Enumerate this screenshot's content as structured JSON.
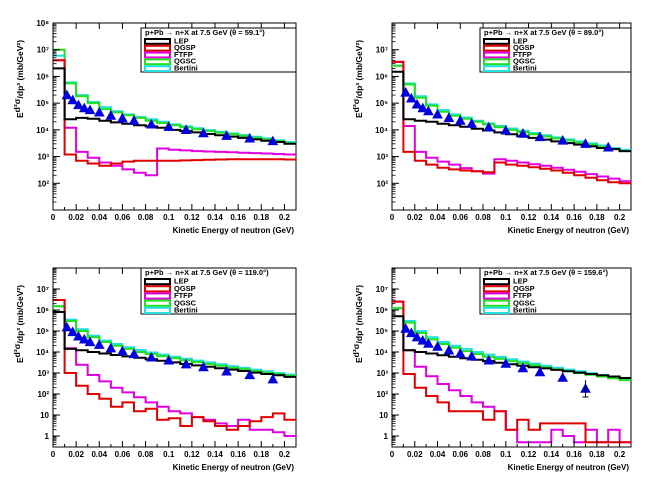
{
  "colors": {
    "LEP": "#000000",
    "QGSP": "#e00000",
    "FTFP": "#e000e0",
    "QGSC": "#20e020",
    "Bertini": "#20e0e0",
    "data_marker": "#0000e0"
  },
  "y_unit_label": "(mb/GeV²)",
  "chart_data": [
    {
      "type": "line",
      "title": "p+Pb → n+X at 7.5 GeV (θ = 59.1°)",
      "xlabel": "Kinetic Energy of neutron (GeV)",
      "ylabel": "E d³σ/dp³ (mb/GeV²)",
      "xlim": [
        0,
        0.21
      ],
      "ylim": [
        10,
        100000000
      ],
      "ylog": true,
      "x_ticks": [
        "0",
        "0.02",
        "0.04",
        "0.06",
        "0.08",
        "0.1",
        "0.12",
        "0.14",
        "0.16",
        "0.18",
        "0.2"
      ],
      "y_ticks": [
        {
          "label": "10²",
          "v": 100
        },
        {
          "label": "10³",
          "v": 1000
        },
        {
          "label": "10⁴",
          "v": 10000
        },
        {
          "label": "10⁵",
          "v": 100000
        },
        {
          "label": "10⁶",
          "v": 1000000
        },
        {
          "label": "10⁷",
          "v": 10000000
        },
        {
          "label": "10⁸",
          "v": 100000000
        }
      ],
      "legend": [
        "LEP",
        "QGSP",
        "FTFP",
        "QGSC",
        "Bertini"
      ],
      "bin_edges": [
        0,
        0.01,
        0.02,
        0.03,
        0.04,
        0.05,
        0.06,
        0.07,
        0.08,
        0.09,
        0.1,
        0.11,
        0.12,
        0.13,
        0.14,
        0.15,
        0.16,
        0.17,
        0.18,
        0.19,
        0.2,
        0.21
      ],
      "series": [
        {
          "name": "LEP",
          "values": [
            2000000,
            25000,
            28000,
            26000,
            22000,
            19000,
            17000,
            15000,
            13500,
            12000,
            10000,
            9000,
            8000,
            7000,
            6300,
            5600,
            5000,
            4400,
            3900,
            3500,
            3000
          ]
        },
        {
          "name": "QGSP",
          "values": [
            4000000,
            1200,
            700,
            550,
            450,
            550,
            650,
            700,
            700,
            700,
            700,
            720,
            740,
            760,
            780,
            790,
            800,
            800,
            800,
            790,
            780
          ]
        },
        {
          "name": "FTFP",
          "values": [
            4000000,
            12000,
            1500,
            900,
            600,
            450,
            330,
            250,
            200,
            2000,
            1800,
            1700,
            1600,
            1550,
            1500,
            1450,
            1400,
            1350,
            1300,
            1250,
            1200
          ]
        },
        {
          "name": "QGSC",
          "values": [
            10000000,
            550000,
            180000,
            100000,
            60000,
            45000,
            35000,
            28000,
            22000,
            18000,
            15000,
            12500,
            10500,
            9000,
            7800,
            6800,
            5900,
            5100,
            4400,
            3800,
            3200
          ]
        },
        {
          "name": "Bertini",
          "values": [
            6000000,
            600000,
            200000,
            110000,
            70000,
            50000,
            38000,
            30000,
            25000,
            20000,
            16000,
            13500,
            11500,
            9800,
            8500,
            7400,
            6400,
            5500,
            4800,
            4100,
            3500
          ]
        }
      ],
      "data_points": [
        {
          "x": 0.012,
          "y": 200000
        },
        {
          "x": 0.017,
          "y": 130000
        },
        {
          "x": 0.022,
          "y": 85000
        },
        {
          "x": 0.027,
          "y": 65000
        },
        {
          "x": 0.032,
          "y": 55000
        },
        {
          "x": 0.04,
          "y": 45000
        },
        {
          "x": 0.05,
          "y": 34000
        },
        {
          "x": 0.06,
          "y": 27000
        },
        {
          "x": 0.07,
          "y": 22000
        },
        {
          "x": 0.085,
          "y": 16000
        },
        {
          "x": 0.1,
          "y": 13000
        },
        {
          "x": 0.115,
          "y": 10000
        },
        {
          "x": 0.13,
          "y": 7500
        },
        {
          "x": 0.15,
          "y": 6000
        },
        {
          "x": 0.17,
          "y": 4800
        },
        {
          "x": 0.19,
          "y": 3800
        }
      ]
    },
    {
      "type": "line",
      "title": "p+Pb → n+X at 7.5 GeV (θ = 89.0°)",
      "xlabel": "Kinetic Energy of neutron (GeV)",
      "ylabel": "E d³σ/dp³ (mb/GeV²)",
      "xlim": [
        0,
        0.21
      ],
      "ylim": [
        10,
        100000000
      ],
      "ylog": true,
      "x_ticks": [
        "0",
        "0.02",
        "0.04",
        "0.06",
        "0.08",
        "0.1",
        "0.12",
        "0.14",
        "0.16",
        "0.18",
        "0.2"
      ],
      "y_ticks": [
        {
          "label": "10²",
          "v": 100
        },
        {
          "label": "10³",
          "v": 1000
        },
        {
          "label": "10⁴",
          "v": 10000
        },
        {
          "label": "10⁵",
          "v": 100000
        },
        {
          "label": "10⁶",
          "v": 1000000
        },
        {
          "label": "10⁷",
          "v": 10000000
        }
      ],
      "legend": [
        "LEP",
        "QGSP",
        "FTFP",
        "QGSC",
        "Bertini"
      ],
      "bin_edges": [
        0,
        0.01,
        0.02,
        0.03,
        0.04,
        0.05,
        0.06,
        0.07,
        0.08,
        0.09,
        0.1,
        0.11,
        0.12,
        0.13,
        0.14,
        0.15,
        0.16,
        0.17,
        0.18,
        0.19,
        0.2,
        0.21
      ],
      "series": [
        {
          "name": "LEP",
          "values": [
            1500000,
            25000,
            22000,
            20000,
            17000,
            15000,
            13000,
            11000,
            9500,
            8000,
            6800,
            5800,
            5000,
            4300,
            3700,
            3200,
            2800,
            2400,
            2100,
            1900,
            1600
          ]
        },
        {
          "name": "QGSP",
          "values": [
            3500000,
            1500,
            700,
            500,
            380,
            330,
            300,
            280,
            260,
            600,
            500,
            450,
            400,
            350,
            300,
            250,
            200,
            160,
            130,
            110,
            100
          ]
        },
        {
          "name": "FTFP",
          "values": [
            3500000,
            14000,
            1500,
            900,
            650,
            500,
            370,
            280,
            230,
            800,
            700,
            600,
            520,
            450,
            380,
            320,
            270,
            220,
            180,
            150,
            120
          ]
        },
        {
          "name": "QGSC",
          "values": [
            2500000,
            500000,
            160000,
            80000,
            48000,
            34000,
            26000,
            20000,
            16000,
            12500,
            10000,
            8300,
            6900,
            5700,
            4800,
            4000,
            3300,
            2800,
            2300,
            1900,
            1600
          ]
        },
        {
          "name": "Bertini",
          "values": [
            2500000,
            550000,
            180000,
            90000,
            55000,
            38000,
            29000,
            22000,
            17500,
            14000,
            11200,
            9200,
            7600,
            6300,
            5200,
            4400,
            3700,
            3100,
            2600,
            2100,
            1800
          ]
        }
      ],
      "data_points": [
        {
          "x": 0.012,
          "y": 250000
        },
        {
          "x": 0.017,
          "y": 150000
        },
        {
          "x": 0.022,
          "y": 90000
        },
        {
          "x": 0.027,
          "y": 65000
        },
        {
          "x": 0.032,
          "y": 50000
        },
        {
          "x": 0.04,
          "y": 38000
        },
        {
          "x": 0.05,
          "y": 28000
        },
        {
          "x": 0.06,
          "y": 22000
        },
        {
          "x": 0.07,
          "y": 17000
        },
        {
          "x": 0.085,
          "y": 12500
        },
        {
          "x": 0.1,
          "y": 9500
        },
        {
          "x": 0.115,
          "y": 7200
        },
        {
          "x": 0.13,
          "y": 5400
        },
        {
          "x": 0.15,
          "y": 4000
        },
        {
          "x": 0.17,
          "y": 3000
        },
        {
          "x": 0.19,
          "y": 2200
        }
      ]
    },
    {
      "type": "line",
      "title": "p+Pb → n+X at 7.5 GeV (θ = 119.0°)",
      "xlabel": "Kinetic Energy of neutron (GeV)",
      "ylabel": "E d³σ/dp³ (mb/GeV²)",
      "xlim": [
        0,
        0.21
      ],
      "ylim": [
        0.3,
        100000000
      ],
      "ylog": true,
      "x_ticks": [
        "0",
        "0.02",
        "0.04",
        "0.06",
        "0.08",
        "0.1",
        "0.12",
        "0.14",
        "0.16",
        "0.18",
        "0.2"
      ],
      "y_ticks": [
        {
          "label": "1",
          "v": 1
        },
        {
          "label": "10",
          "v": 10
        },
        {
          "label": "10²",
          "v": 100
        },
        {
          "label": "10³",
          "v": 1000
        },
        {
          "label": "10⁴",
          "v": 10000
        },
        {
          "label": "10⁵",
          "v": 100000
        },
        {
          "label": "10⁶",
          "v": 1000000
        },
        {
          "label": "10⁷",
          "v": 10000000
        }
      ],
      "legend": [
        "LEP",
        "QGSP",
        "FTFP",
        "QGSC",
        "Bertini"
      ],
      "bin_edges": [
        0,
        0.01,
        0.02,
        0.03,
        0.04,
        0.05,
        0.06,
        0.07,
        0.08,
        0.09,
        0.1,
        0.11,
        0.12,
        0.13,
        0.14,
        0.15,
        0.16,
        0.17,
        0.18,
        0.19,
        0.2,
        0.21
      ],
      "series": [
        {
          "name": "LEP",
          "values": [
            800000,
            14000,
            12000,
            10000,
            8500,
            7200,
            6200,
            5300,
            4500,
            3800,
            3200,
            2700,
            2300,
            2000,
            1700,
            1450,
            1250,
            1050,
            900,
            780,
            650
          ]
        },
        {
          "name": "QGSP",
          "values": [
            3000000,
            1000,
            250,
            100,
            60,
            25,
            40,
            15,
            20,
            6,
            7,
            3,
            8,
            5,
            3,
            2,
            3,
            5,
            8,
            12,
            6
          ]
        },
        {
          "name": "FTFP",
          "values": [
            3000000,
            15000,
            2500,
            800,
            400,
            200,
            120,
            70,
            40,
            25,
            15,
            12,
            8,
            6,
            4,
            3,
            6,
            2,
            2,
            1.5,
            1
          ]
        },
        {
          "name": "QGSC",
          "values": [
            1500000,
            300000,
            100000,
            50000,
            30000,
            20000,
            14000,
            10000,
            8000,
            6300,
            5000,
            4000,
            3300,
            2700,
            2200,
            1800,
            1500,
            1250,
            1050,
            880,
            740
          ]
        },
        {
          "name": "Bertini",
          "values": [
            1500000,
            350000,
            120000,
            60000,
            35000,
            24000,
            17000,
            12500,
            9500,
            7500,
            6000,
            4800,
            3900,
            3200,
            2600,
            2100,
            1750,
            1450,
            1200,
            1000,
            850
          ]
        }
      ],
      "data_points": [
        {
          "x": 0.012,
          "y": 150000
        },
        {
          "x": 0.017,
          "y": 90000
        },
        {
          "x": 0.022,
          "y": 55000
        },
        {
          "x": 0.027,
          "y": 40000
        },
        {
          "x": 0.032,
          "y": 30000
        },
        {
          "x": 0.04,
          "y": 22000
        },
        {
          "x": 0.05,
          "y": 15000
        },
        {
          "x": 0.06,
          "y": 11000
        },
        {
          "x": 0.07,
          "y": 8000
        },
        {
          "x": 0.085,
          "y": 5500
        },
        {
          "x": 0.1,
          "y": 4000
        },
        {
          "x": 0.115,
          "y": 2600
        },
        {
          "x": 0.13,
          "y": 1900
        },
        {
          "x": 0.15,
          "y": 1200
        },
        {
          "x": 0.17,
          "y": 800
        },
        {
          "x": 0.19,
          "y": 500
        }
      ]
    },
    {
      "type": "line",
      "title": "p+Pb → n+X at 7.5 GeV (θ = 159.6°)",
      "xlabel": "Kinetic Energy of neutron (GeV)",
      "ylabel": "E d³σ/dp³ (mb/GeV²)",
      "xlim": [
        0,
        0.21
      ],
      "ylim": [
        0.3,
        100000000
      ],
      "ylog": true,
      "x_ticks": [
        "0",
        "0.02",
        "0.04",
        "0.06",
        "0.08",
        "0.1",
        "0.12",
        "0.14",
        "0.16",
        "0.18",
        "0.2"
      ],
      "y_ticks": [
        {
          "label": "1",
          "v": 1
        },
        {
          "label": "10",
          "v": 10
        },
        {
          "label": "10²",
          "v": 100
        },
        {
          "label": "10³",
          "v": 1000
        },
        {
          "label": "10⁴",
          "v": 10000
        },
        {
          "label": "10⁵",
          "v": 100000
        },
        {
          "label": "10⁶",
          "v": 1000000
        },
        {
          "label": "10⁷",
          "v": 10000000
        }
      ],
      "legend": [
        "LEP",
        "QGSP",
        "FTFP",
        "QGSC",
        "Bertini"
      ],
      "bin_edges": [
        0,
        0.01,
        0.02,
        0.03,
        0.04,
        0.05,
        0.06,
        0.07,
        0.08,
        0.09,
        0.1,
        0.11,
        0.12,
        0.13,
        0.14,
        0.15,
        0.16,
        0.17,
        0.18,
        0.19,
        0.2,
        0.21
      ],
      "series": [
        {
          "name": "LEP",
          "values": [
            500000,
            12000,
            10000,
            8500,
            7000,
            6000,
            5000,
            4300,
            3700,
            3100,
            2600,
            2200,
            1900,
            1650,
            1400,
            1200,
            1050,
            900,
            780,
            680,
            580
          ]
        },
        {
          "name": "QGSP",
          "values": [
            2500000,
            900,
            200,
            80,
            40,
            15,
            15,
            15,
            6,
            15,
            2,
            6,
            2,
            4,
            4,
            4,
            4,
            0.5,
            0.5,
            0.5,
            0.5
          ]
        },
        {
          "name": "FTFP",
          "values": [
            2500000,
            12000,
            2000,
            700,
            300,
            150,
            80,
            40,
            25,
            15,
            2,
            0.5,
            0.5,
            0.5,
            2,
            1,
            0.5,
            2,
            0.5,
            2,
            0.5
          ]
        },
        {
          "name": "QGSC",
          "values": [
            1200000,
            250000,
            80000,
            40000,
            24000,
            16000,
            11000,
            8000,
            6000,
            4700,
            3700,
            2900,
            2300,
            1850,
            1500,
            1200,
            1000,
            820,
            680,
            560,
            460
          ]
        },
        {
          "name": "Bertini",
          "values": [
            1200000,
            300000,
            100000,
            50000,
            30000,
            20000,
            14000,
            10000,
            7500,
            5800,
            4500,
            3500,
            2800,
            2200,
            1800,
            1450,
            1200,
            980,
            800,
            650,
            540
          ]
        }
      ],
      "data_points": [
        {
          "x": 0.012,
          "y": 130000
        },
        {
          "x": 0.017,
          "y": 80000
        },
        {
          "x": 0.022,
          "y": 50000
        },
        {
          "x": 0.027,
          "y": 35000
        },
        {
          "x": 0.032,
          "y": 25000
        },
        {
          "x": 0.04,
          "y": 18000
        },
        {
          "x": 0.05,
          "y": 12000
        },
        {
          "x": 0.06,
          "y": 8500
        },
        {
          "x": 0.07,
          "y": 6200
        },
        {
          "x": 0.085,
          "y": 4000
        },
        {
          "x": 0.1,
          "y": 2800
        },
        {
          "x": 0.115,
          "y": 1700
        },
        {
          "x": 0.13,
          "y": 1100
        },
        {
          "x": 0.15,
          "y": 600
        },
        {
          "x": 0.17,
          "y": 180
        }
      ]
    }
  ]
}
